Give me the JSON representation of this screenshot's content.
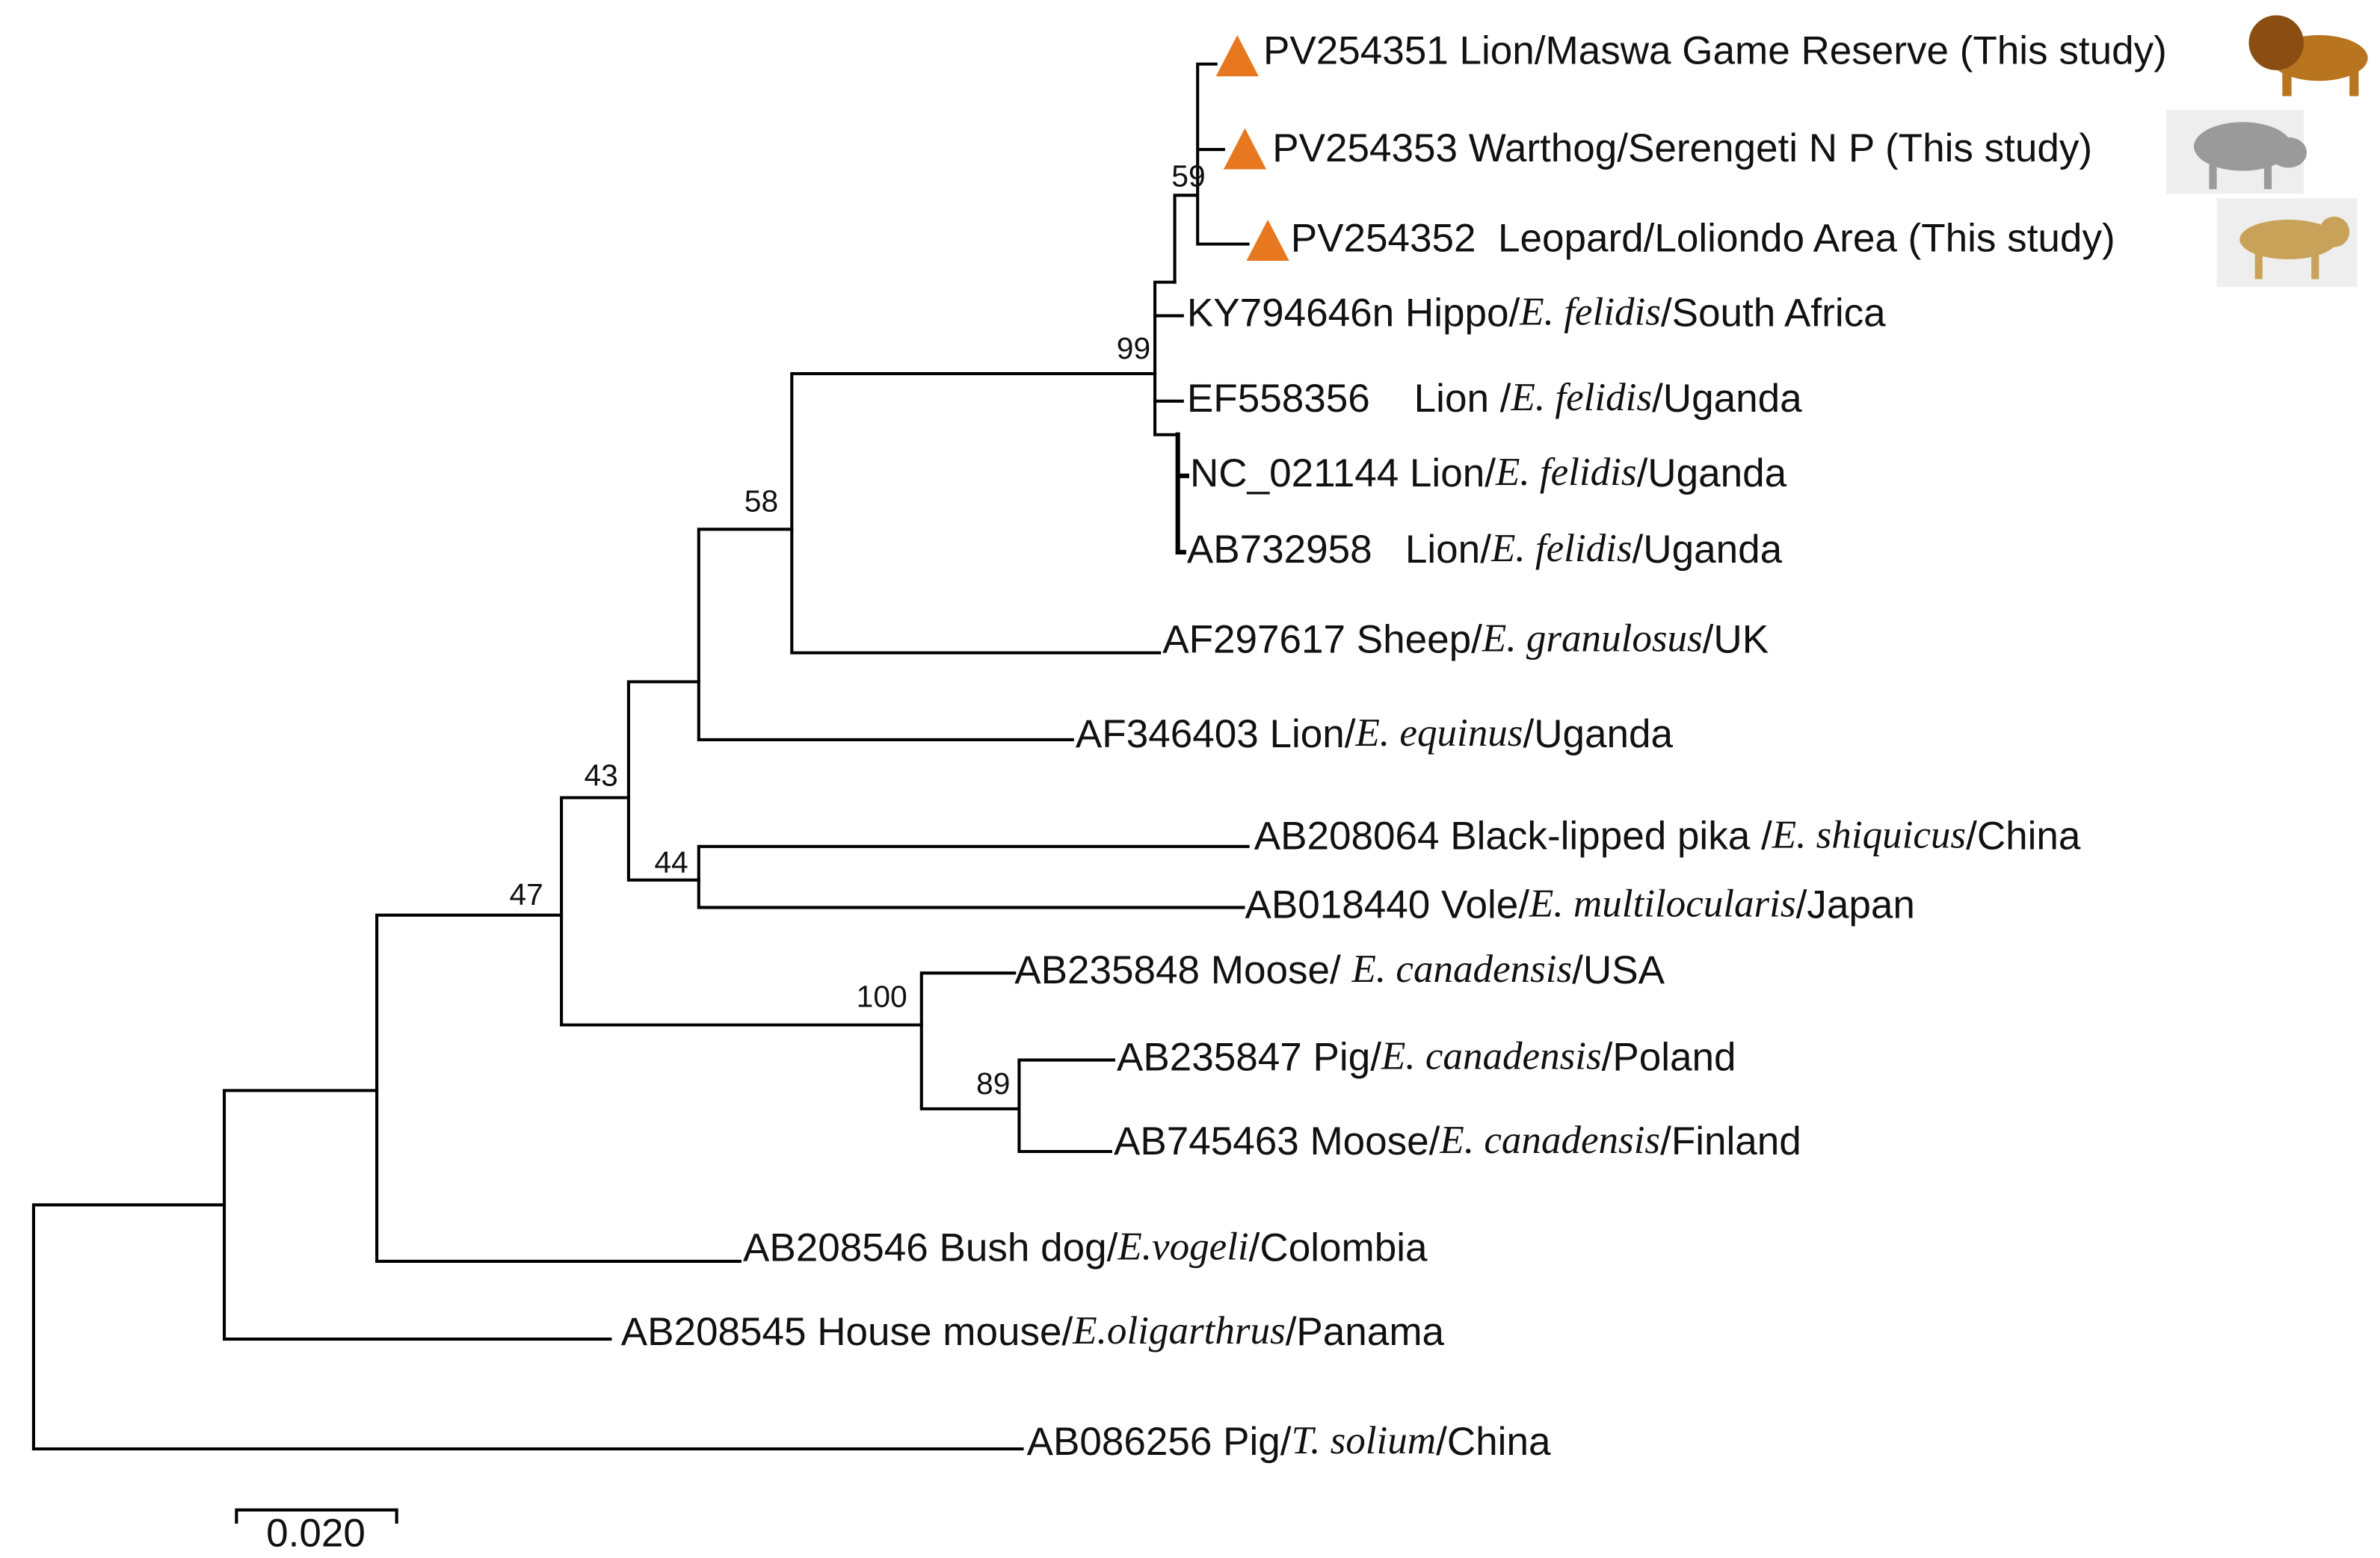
{
  "leaves": [
    {
      "prefix": "PV254351 Lion/Maswa Game Reserve (This study)"
    },
    {
      "prefix": "PV254353 Warthog/Serengeti N P (This study)"
    },
    {
      "prefix": "PV254352  Leopard/Loliondo Area (This study)"
    },
    {
      "prefix": "KY794646n Hippo/",
      "species": "E. felidis",
      "suffix": "/South Africa"
    },
    {
      "prefix": "EF558356    Lion /",
      "species": "E. felidis",
      "suffix": "/Uganda"
    },
    {
      "prefix": "NC_021144 Lion/",
      "species": "E. felidis",
      "suffix": "/Uganda"
    },
    {
      "prefix": "AB732958   Lion/",
      "species": "E. felidis",
      "suffix": "/Uganda"
    },
    {
      "prefix": "AF297617 Sheep/",
      "species": "E. granulosus",
      "suffix": "/UK"
    },
    {
      "prefix": "AF346403 Lion/",
      "species": "E. equinus",
      "suffix": "/Uganda"
    },
    {
      "prefix": "AB208064 Black-lipped pika /",
      "species": "E. shiquicus",
      "suffix": "/China"
    },
    {
      "prefix": "AB018440 Vole/",
      "species": "E. multilocularis",
      "suffix": "/Japan"
    },
    {
      "prefix": "AB235848 Moose/ ",
      "species": "E. canadensis",
      "suffix": "/USA"
    },
    {
      "prefix": "AB235847 Pig/",
      "species": "E. canadensis",
      "suffix": "/Poland"
    },
    {
      "prefix": "AB745463 Moose/",
      "species": "E. canadensis",
      "suffix": "/Finland"
    },
    {
      "prefix": "AB208546 Bush dog/",
      "species": "E.vogeli",
      "suffix": "/Colombia"
    },
    {
      "prefix": "AB208545 House mouse/",
      "species": "E.oligarthrus",
      "suffix": "/Panama"
    },
    {
      "prefix": "AB086256 Pig/",
      "species": "T. solium",
      "suffix": "/China"
    }
  ],
  "bootstraps": [
    59,
    99,
    58,
    44,
    43,
    47,
    100,
    89
  ],
  "scale_bar": {
    "label": "0.020"
  }
}
